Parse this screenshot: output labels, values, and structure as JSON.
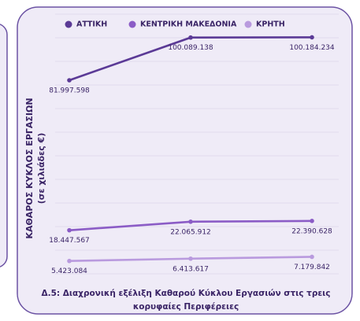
{
  "chart_data": {
    "type": "line",
    "title": [
      "Δ.5: Διαχρονική εξέλιξη Καθαρού Κύκλου Εργασιών στις τρεις",
      "κορυφαίες Περιφέρειες"
    ],
    "ylabel": [
      "ΚΑΘΑΡΟΣ ΚΥΚΛΟΣ ΕΡΓΑΣΙΩΝ",
      "(σε χιλιάδες €)"
    ],
    "categories": [
      null,
      null,
      null
    ],
    "series": [
      {
        "name": "ΑΤΤΙΚΗ",
        "color": "#5b3a96",
        "values": [
          81997598,
          100089138,
          100184234
        ],
        "value_labels": [
          "81.997.598",
          "100.089.138",
          "100.184.234"
        ]
      },
      {
        "name": "ΚΕΝΤΡΙΚΗ ΜΑΚΕΔΟΝΙΑ",
        "color": "#8b5cc6",
        "values": [
          18447567,
          22065912,
          22390628
        ],
        "value_labels": [
          "18.447.567",
          "22.065.912",
          "22.390.628"
        ]
      },
      {
        "name": "ΚΡΗΤΗ",
        "color": "#b99ade",
        "values": [
          5423084,
          6413617,
          7179842
        ],
        "value_labels": [
          "5.423.084",
          "6.413.617",
          "7.179.842"
        ]
      }
    ],
    "ylim": [
      0,
      110000000
    ],
    "yticks": [
      0,
      10000000,
      20000000,
      30000000,
      40000000,
      50000000,
      60000000,
      70000000,
      80000000,
      90000000,
      100000000,
      110000000
    ],
    "grid": true
  }
}
